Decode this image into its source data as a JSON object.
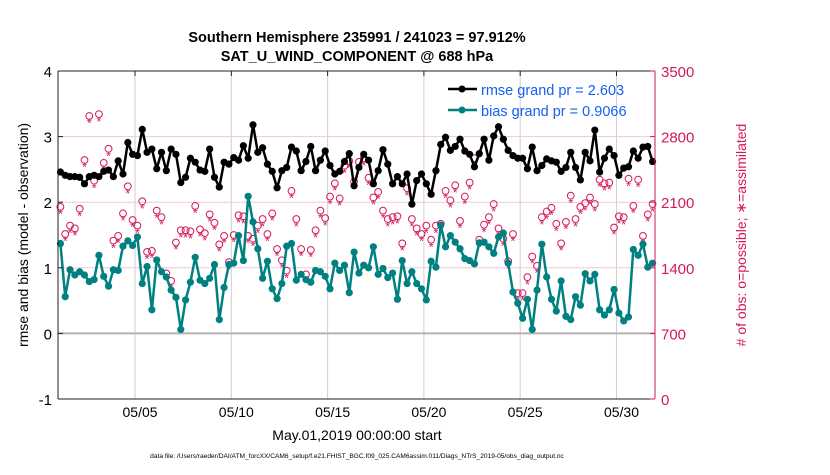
{
  "chart_data": {
    "type": "line",
    "title": "Southern Hemisphere 235991 / 241023 = 97.912%",
    "subtitle": "SAT_U_WIND_COMPONENT @ 688 hPa",
    "xlabel": "May.01,2019 00:00:00 start",
    "ylabel": "rmse and bias (model - observation)",
    "ylabel_right": "# of obs: o=possible; ∗=assimilated",
    "footer": "data file: /Users/raeder/DAI/ATM_forcXX/CAM6_setup/f.e21.FHIST_BGC.f09_025.CAM6assim.011/Diags_NTrS_2019-05/obs_diag_output.nc",
    "x_unit": "day of May 2019",
    "xlim": [
      1,
      32
    ],
    "x_ticks": [
      5,
      10,
      15,
      20,
      25,
      30
    ],
    "x_tick_labels": [
      "05/05",
      "05/10",
      "05/15",
      "05/20",
      "05/25",
      "05/30"
    ],
    "ylim": [
      -1,
      4
    ],
    "y_ticks": [
      "-1",
      "0",
      "1",
      "2",
      "3",
      "4"
    ],
    "ylim_right": [
      0,
      3500
    ],
    "y_ticks_right": [
      "0",
      "700",
      "1400",
      "2100",
      "2800",
      "3500"
    ],
    "grid": true,
    "legend_placement": "top-right",
    "colors": {
      "rmse": "#000000",
      "bias": "#008080",
      "obs": "#d6175c",
      "legend_text": "#1560f0",
      "grid_h": "#efc9d6",
      "grid_v": "#cfcfcf"
    },
    "series": [
      {
        "name": "rmse grand pr = 2.603",
        "axis": "left",
        "values": [
          2.46,
          2.41,
          2.39,
          2.39,
          2.38,
          2.28,
          2.39,
          2.41,
          2.39,
          2.47,
          2.49,
          2.39,
          2.63,
          2.43,
          2.91,
          2.73,
          2.71,
          3.11,
          2.76,
          2.81,
          2.51,
          2.76,
          2.48,
          2.81,
          2.73,
          2.3,
          2.38,
          2.67,
          2.61,
          2.49,
          2.47,
          2.81,
          2.38,
          2.23,
          2.61,
          2.58,
          2.68,
          2.64,
          2.86,
          2.67,
          3.18,
          2.76,
          2.83,
          2.58,
          2.47,
          2.22,
          2.48,
          2.53,
          2.84,
          2.78,
          2.48,
          2.62,
          2.85,
          2.48,
          2.64,
          2.78,
          2.56,
          2.43,
          2.47,
          2.62,
          2.74,
          2.25,
          2.53,
          2.73,
          2.64,
          2.28,
          2.48,
          2.8,
          2.58,
          2.28,
          2.39,
          2.28,
          2.43,
          1.97,
          2.33,
          2.43,
          2.28,
          2.12,
          2.48,
          2.88,
          2.99,
          2.79,
          2.85,
          2.96,
          2.78,
          2.73,
          2.54,
          2.74,
          2.96,
          2.64,
          3.01,
          3.15,
          2.96,
          2.79,
          2.71,
          2.67,
          2.67,
          2.51,
          2.84,
          2.48,
          2.56,
          2.66,
          2.63,
          2.61,
          2.47,
          2.53,
          2.76,
          2.53,
          2.34,
          2.76,
          2.63,
          3.1,
          2.46,
          2.67,
          2.81,
          2.71,
          2.41,
          2.52,
          2.54,
          2.78,
          2.67,
          2.84,
          2.85,
          2.62
        ]
      },
      {
        "name": "bias grand pr = 0.9066",
        "axis": "left",
        "values": [
          1.37,
          0.56,
          0.97,
          0.89,
          0.94,
          0.89,
          0.79,
          0.82,
          1.19,
          0.87,
          0.72,
          0.97,
          0.96,
          1.33,
          1.41,
          1.34,
          1.47,
          0.76,
          1.02,
          0.36,
          1.12,
          0.94,
          0.86,
          0.66,
          0.55,
          0.06,
          0.51,
          0.78,
          1.16,
          0.81,
          0.76,
          0.84,
          1.05,
          0.21,
          0.7,
          1.05,
          1.07,
          1.49,
          1.11,
          2.09,
          1.7,
          1.29,
          0.84,
          1.1,
          0.68,
          0.53,
          0.76,
          1.33,
          1.37,
          0.81,
          0.9,
          0.82,
          0.78,
          0.96,
          0.94,
          0.87,
          0.68,
          1.07,
          0.96,
          1.04,
          0.62,
          1.24,
          0.92,
          1.04,
          1.0,
          1.32,
          0.9,
          0.99,
          0.85,
          0.92,
          0.52,
          1.11,
          0.76,
          0.94,
          0.76,
          0.68,
          0.51,
          1.1,
          1.01,
          1.65,
          1.32,
          1.49,
          1.39,
          1.29,
          1.14,
          1.11,
          1.06,
          1.38,
          1.39,
          1.32,
          1.22,
          1.47,
          1.53,
          1.07,
          0.63,
          0.46,
          0.23,
          0.52,
          0.06,
          0.66,
          1.36,
          0.86,
          0.52,
          0.34,
          0.8,
          0.26,
          0.21,
          0.56,
          0.43,
          0.91,
          0.8,
          0.9,
          0.36,
          0.28,
          0.36,
          0.67,
          0.31,
          0.19,
          0.25,
          1.28,
          1.19,
          1.36,
          1.01,
          1.07
        ]
      },
      {
        "name": "possible",
        "axis": "right",
        "marker": "o",
        "values": [
          2050,
          1760,
          1850,
          1820,
          2030,
          2550,
          3020,
          2330,
          3040,
          2520,
          2670,
          1690,
          1740,
          1980,
          2270,
          1910,
          1850,
          2110,
          1570,
          1580,
          2010,
          1940,
          1340,
          1260,
          1670,
          1800,
          1800,
          1790,
          2060,
          1810,
          1770,
          1970,
          1880,
          1650,
          1740,
          1460,
          1750,
          1960,
          1950,
          1740,
          1710,
          1850,
          1920,
          1760,
          1980,
          1600,
          1480,
          1370,
          2220,
          1920,
          1600,
          1330,
          1590,
          1800,
          2010,
          1930,
          2160,
          2300,
          2140,
          2490,
          2540,
          2320,
          2530,
          2570,
          2360,
          2150,
          2210,
          2010,
          1920,
          1940,
          1950,
          1660,
          2250,
          1920,
          1820,
          1760,
          1850,
          1700,
          1850,
          1870,
          2220,
          2120,
          2280,
          1900,
          2160,
          2310,
          2570,
          1700,
          1860,
          1940,
          2080,
          1820,
          1710,
          1470,
          1760,
          1130,
          1130,
          1300,
          1520,
          1420,
          1940,
          2000,
          2040,
          1870,
          1660,
          1890,
          2170,
          1920,
          2050,
          2090,
          2150,
          2080,
          2340,
          2300,
          2310,
          1830,
          1950,
          1940,
          2350,
          2060,
          2340,
          1740,
          1970,
          2080
        ]
      },
      {
        "name": "assimilated",
        "axis": "right",
        "marker": "*",
        "values": [
          2000,
          1710,
          1800,
          1770,
          1980,
          2500,
          2970,
          2280,
          2990,
          2470,
          2620,
          1640,
          1690,
          1930,
          2220,
          1860,
          1800,
          2060,
          1520,
          1530,
          1960,
          1890,
          1290,
          1210,
          1620,
          1750,
          1750,
          1740,
          2010,
          1760,
          1720,
          1920,
          1830,
          1600,
          1690,
          1410,
          1700,
          1910,
          1900,
          1690,
          1660,
          1800,
          1870,
          1710,
          1930,
          1550,
          1430,
          1320,
          2170,
          1870,
          1550,
          1280,
          1540,
          1750,
          1960,
          1880,
          2110,
          2250,
          2090,
          2440,
          2490,
          2270,
          2480,
          2520,
          2310,
          2100,
          2160,
          1960,
          1870,
          1890,
          1900,
          1610,
          2200,
          1870,
          1770,
          1710,
          1800,
          1650,
          1800,
          1820,
          2170,
          2070,
          2230,
          1850,
          2110,
          2260,
          2520,
          1650,
          1810,
          1890,
          2030,
          1770,
          1660,
          1420,
          1710,
          1080,
          1080,
          1250,
          1470,
          1370,
          1890,
          1950,
          1990,
          1820,
          1610,
          1840,
          2120,
          1870,
          2000,
          2040,
          2100,
          2030,
          2290,
          2250,
          2260,
          1780,
          1900,
          1890,
          2300,
          2010,
          2290,
          1690,
          1920,
          2030
        ]
      }
    ]
  }
}
